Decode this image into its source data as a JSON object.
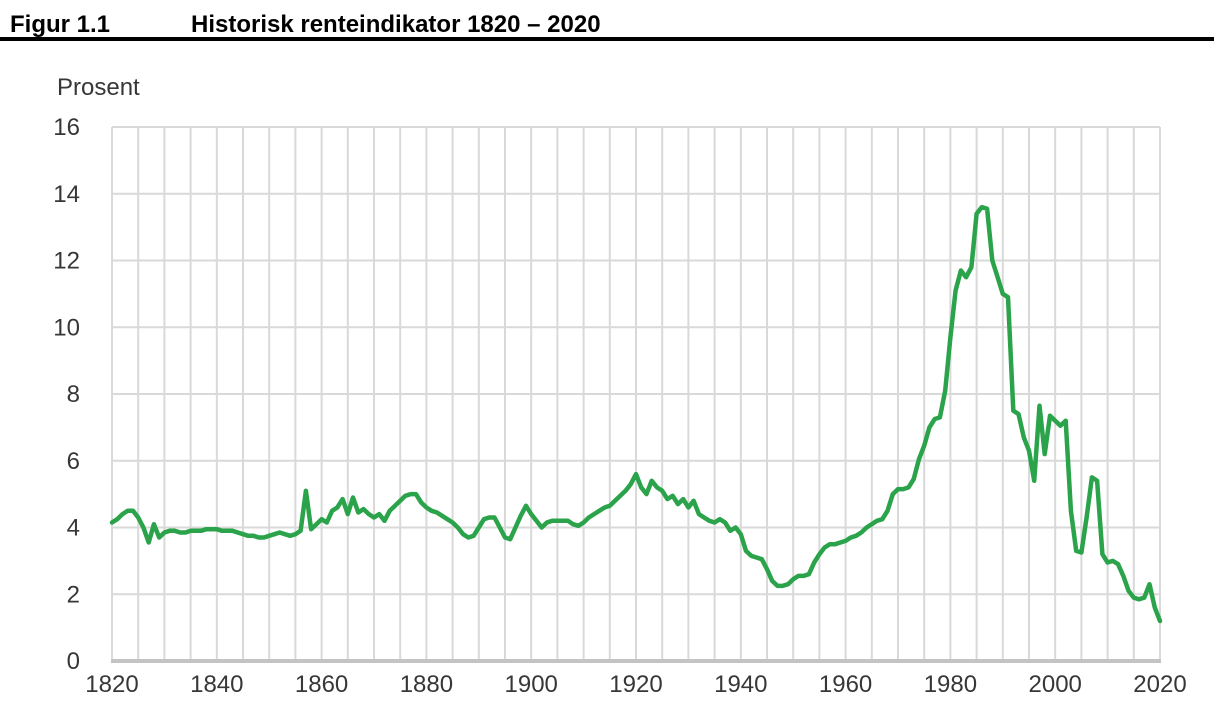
{
  "header": {
    "figure_label": "Figur 1.1",
    "title": "Historisk renteindikator 1820 – 2020"
  },
  "colors": {
    "line": "#2aa34a",
    "grid": "#d9d9d9",
    "axis": "#c4c4c4",
    "tick_text": "#373737",
    "title_text": "#000000",
    "rule": "#000000",
    "background": "#ffffff"
  },
  "chart_data": {
    "type": "line",
    "title": "Historisk renteindikator 1820 – 2020",
    "xlabel": "",
    "ylabel": "Prosent",
    "xlim": [
      1820,
      2020
    ],
    "ylim": [
      0,
      16
    ],
    "grid": true,
    "legend": "none",
    "x_ticks": [
      1820,
      1840,
      1860,
      1880,
      1900,
      1920,
      1940,
      1960,
      1980,
      2000,
      2020
    ],
    "y_ticks": [
      0,
      2,
      4,
      6,
      8,
      10,
      12,
      14,
      16
    ],
    "x_gridline_step_years": 5,
    "line_color": "#2aa34a",
    "series_name": "Historisk renteindikator (prosent)",
    "x_start": 1820,
    "x_step": 1,
    "values": [
      4.15,
      4.25,
      4.4,
      4.5,
      4.5,
      4.3,
      4.0,
      3.55,
      4.1,
      3.7,
      3.85,
      3.9,
      3.9,
      3.85,
      3.85,
      3.9,
      3.9,
      3.9,
      3.95,
      3.95,
      3.95,
      3.9,
      3.9,
      3.9,
      3.85,
      3.8,
      3.75,
      3.75,
      3.7,
      3.7,
      3.75,
      3.8,
      3.85,
      3.8,
      3.75,
      3.8,
      3.9,
      5.1,
      3.95,
      4.1,
      4.25,
      4.15,
      4.5,
      4.6,
      4.85,
      4.4,
      4.9,
      4.45,
      4.55,
      4.4,
      4.3,
      4.4,
      4.2,
      4.5,
      4.65,
      4.8,
      4.95,
      5.0,
      5.0,
      4.75,
      4.6,
      4.5,
      4.45,
      4.35,
      4.25,
      4.15,
      4.0,
      3.8,
      3.7,
      3.75,
      4.0,
      4.25,
      4.3,
      4.3,
      4.0,
      3.7,
      3.65,
      4.0,
      4.35,
      4.65,
      4.4,
      4.2,
      4.0,
      4.15,
      4.2,
      4.2,
      4.2,
      4.2,
      4.1,
      4.05,
      4.15,
      4.3,
      4.4,
      4.5,
      4.6,
      4.65,
      4.8,
      4.95,
      5.1,
      5.3,
      5.6,
      5.2,
      5.0,
      5.4,
      5.2,
      5.1,
      4.85,
      4.95,
      4.7,
      4.85,
      4.6,
      4.8,
      4.4,
      4.3,
      4.2,
      4.15,
      4.25,
      4.15,
      3.9,
      4.0,
      3.8,
      3.3,
      3.15,
      3.1,
      3.05,
      2.75,
      2.4,
      2.25,
      2.25,
      2.3,
      2.45,
      2.55,
      2.55,
      2.6,
      2.95,
      3.2,
      3.4,
      3.5,
      3.5,
      3.55,
      3.6,
      3.7,
      3.75,
      3.85,
      4.0,
      4.1,
      4.2,
      4.25,
      4.5,
      5.0,
      5.15,
      5.15,
      5.2,
      5.45,
      6.05,
      6.45,
      7.0,
      7.25,
      7.3,
      8.1,
      9.7,
      11.1,
      11.7,
      11.5,
      11.8,
      13.4,
      13.6,
      13.55,
      12.0,
      11.5,
      11.0,
      10.9,
      7.5,
      7.4,
      6.7,
      6.3,
      5.4,
      7.65,
      6.2,
      7.35,
      7.2,
      7.05,
      7.2,
      4.5,
      3.3,
      3.25,
      4.3,
      5.5,
      5.4,
      3.2,
      2.95,
      3.0,
      2.9,
      2.55,
      2.1,
      1.9,
      1.85,
      1.9,
      2.3,
      1.6,
      1.2
    ]
  }
}
